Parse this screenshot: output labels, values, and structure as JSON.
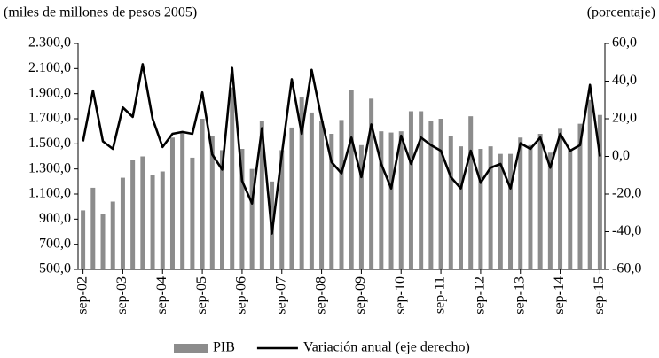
{
  "chart_data": {
    "type": "bar-line",
    "y_label": "(miles de millones de pesos 2005)",
    "y2_label": "(porcentaje)",
    "categories": [
      "sep-02",
      null,
      null,
      null,
      "sep-03",
      null,
      null,
      null,
      "sep-04",
      null,
      null,
      null,
      "sep-05",
      null,
      null,
      null,
      "sep-06",
      null,
      null,
      null,
      "sep-07",
      null,
      null,
      null,
      "sep-08",
      null,
      null,
      null,
      "sep-09",
      null,
      null,
      null,
      "sep-10",
      null,
      null,
      null,
      "sep-11",
      null,
      null,
      null,
      "sep-12",
      null,
      null,
      null,
      "sep-13",
      null,
      null,
      null,
      "sep-14",
      null,
      null,
      null,
      "sep-15"
    ],
    "series": [
      {
        "name": "PIB",
        "type": "bar",
        "color": "#8c8c8c",
        "values": [
          970,
          1150,
          940,
          1040,
          1230,
          1370,
          1400,
          1250,
          1280,
          1550,
          1600,
          1390,
          1700,
          1560,
          1450,
          1950,
          1460,
          1300,
          1680,
          1200,
          1450,
          1630,
          1870,
          1750,
          1680,
          1580,
          1690,
          1930,
          1490,
          1860,
          1600,
          1590,
          1600,
          1760,
          1760,
          1680,
          1700,
          1560,
          1480,
          1720,
          1460,
          1480,
          1420,
          1420,
          1550,
          1490,
          1580,
          1430,
          1620,
          1460,
          1660,
          1850,
          1730
        ]
      },
      {
        "name": "Variación anual (eje derecho)",
        "type": "line",
        "axis": "y2",
        "color": "#000000",
        "values": [
          8,
          35,
          8,
          4,
          26,
          21,
          49,
          20,
          5,
          12,
          13,
          12,
          34,
          1,
          -7,
          47,
          -13,
          -25,
          15,
          -41,
          1,
          41,
          12,
          46,
          20,
          -3,
          -9,
          10,
          -11,
          17,
          -4,
          -17,
          11,
          -4,
          10,
          6,
          3,
          -11,
          -17,
          3,
          -14,
          -6,
          -4,
          -17,
          7,
          4,
          10,
          -6,
          12,
          3,
          6,
          38,
          0
        ]
      }
    ],
    "ylim": [
      500,
      2300
    ],
    "yticks": [
      {
        "value": 500,
        "label": "500,0"
      },
      {
        "value": 700,
        "label": "700,0"
      },
      {
        "value": 900,
        "label": "900,0"
      },
      {
        "value": 1100,
        "label": "1.100,0"
      },
      {
        "value": 1300,
        "label": "1.300,0"
      },
      {
        "value": 1500,
        "label": "1.500,0"
      },
      {
        "value": 1700,
        "label": "1.700,0"
      },
      {
        "value": 1900,
        "label": "1.900,0"
      },
      {
        "value": 2100,
        "label": "2.100,0"
      },
      {
        "value": 2300,
        "label": "2.300,0"
      }
    ],
    "y2lim": [
      -60,
      60
    ],
    "y2ticks": [
      {
        "value": -60,
        "label": "-60,0"
      },
      {
        "value": -40,
        "label": "-40,0"
      },
      {
        "value": -20,
        "label": "-20,0"
      },
      {
        "value": 0,
        "label": "0,0"
      },
      {
        "value": 20,
        "label": "20,0"
      },
      {
        "value": 40,
        "label": "40,0"
      },
      {
        "value": 60,
        "label": "60,0"
      }
    ],
    "legend": "bottom"
  }
}
